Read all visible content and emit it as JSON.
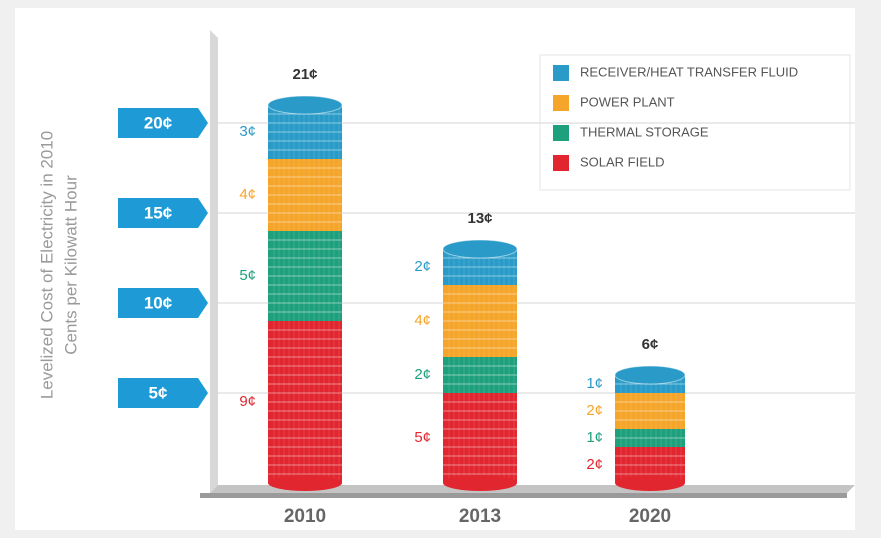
{
  "chart_data": {
    "type": "bar",
    "stacked": true,
    "ylabel": [
      "Levelized Cost of Electricity in 2010",
      "Cents per Kilowatt Hour"
    ],
    "categories": [
      "2010",
      "2013",
      "2020"
    ],
    "series": [
      {
        "name": "SOLAR FIELD",
        "color": "#e2262f",
        "values": [
          9,
          5,
          2
        ],
        "value_labels": [
          "9¢",
          "5¢",
          "2¢"
        ]
      },
      {
        "name": "THERMAL STORAGE",
        "color": "#1fa07c",
        "values": [
          5,
          2,
          1
        ],
        "value_labels": [
          "5¢",
          "2¢",
          "1¢"
        ]
      },
      {
        "name": "POWER PLANT",
        "color": "#f5a52a",
        "values": [
          4,
          4,
          2
        ],
        "value_labels": [
          "4¢",
          "4¢",
          "2¢"
        ]
      },
      {
        "name": "RECEIVER/HEAT TRANSFER FLUID",
        "color": "#2a9bc8",
        "values": [
          3,
          2,
          1
        ],
        "value_labels": [
          "3¢",
          "2¢",
          "1¢"
        ]
      }
    ],
    "totals": {
      "values": [
        21,
        13,
        6
      ],
      "value_labels": [
        "21¢",
        "13¢",
        "6¢"
      ]
    },
    "ylim": [
      0,
      25
    ],
    "yticks": [
      {
        "value": 5,
        "label": "5¢"
      },
      {
        "value": 10,
        "label": "10¢"
      },
      {
        "value": 15,
        "label": "15¢"
      },
      {
        "value": 20,
        "label": "20¢"
      }
    ],
    "grid": true
  }
}
